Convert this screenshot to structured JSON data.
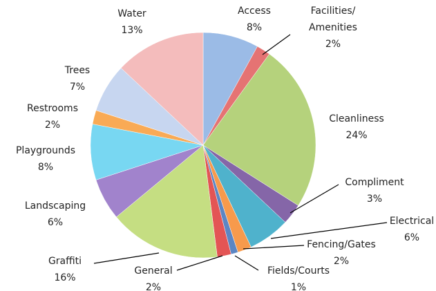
{
  "chart_data": {
    "type": "pie",
    "categories": [
      "Access",
      "Facilities/ Amenities",
      "Cleanliness",
      "Compliment",
      "Electrical",
      "Fencing/Gates",
      "Fields/Courts",
      "General",
      "Graffiti",
      "Landscaping",
      "Playgrounds",
      "Restrooms",
      "Trees",
      "Water"
    ],
    "values": [
      8,
      2,
      24,
      3,
      6,
      2,
      1,
      2,
      16,
      6,
      8,
      2,
      7,
      13
    ],
    "value_labels": [
      "8%",
      "2%",
      "24%",
      "3%",
      "6%",
      "2%",
      "1%",
      "2%",
      "16%",
      "6%",
      "8%",
      "2%",
      "7%",
      "13%"
    ],
    "colors": [
      "#9bbbe6",
      "#e57373",
      "#b5d27c",
      "#8566a8",
      "#4fb2cc",
      "#f79a4c",
      "#5b86c4",
      "#e35555",
      "#c5de82",
      "#a183cc",
      "#78d7f2",
      "#f9aa55",
      "#c7d6f0",
      "#f4bcbc"
    ]
  }
}
